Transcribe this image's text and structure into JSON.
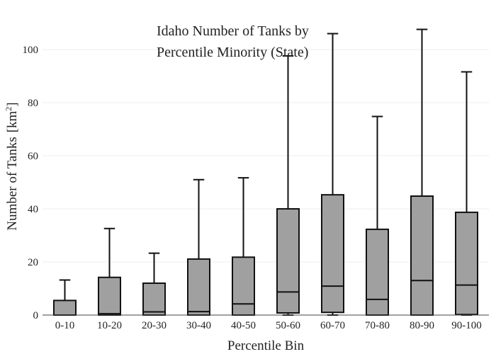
{
  "chart_data": {
    "type": "box",
    "title_lines": [
      "Idaho Number of Tanks by",
      "Percentile Minority (State)"
    ],
    "xlabel": "Percentile Bin",
    "ylabel": "Number of Tanks",
    "ylabel_unit": "[km",
    "ylabel_unit_sup": "2",
    "ylabel_unit_close": "]",
    "categories": [
      "0-10",
      "10-20",
      "20-30",
      "30-40",
      "40-50",
      "50-60",
      "60-70",
      "70-80",
      "80-90",
      "90-100"
    ],
    "boxes": [
      {
        "min": 0,
        "q1": 0,
        "median": 0,
        "q3": 5.5,
        "max": 13.2
      },
      {
        "min": 0,
        "q1": 0,
        "median": 0.5,
        "q3": 14.2,
        "max": 32.6
      },
      {
        "min": 0,
        "q1": 0,
        "median": 1.2,
        "q3": 12.0,
        "max": 23.3
      },
      {
        "min": 0,
        "q1": 0,
        "median": 1.3,
        "q3": 21.1,
        "max": 51.0
      },
      {
        "min": 0,
        "q1": 0,
        "median": 4.2,
        "q3": 21.8,
        "max": 51.7
      },
      {
        "min": 0,
        "q1": 0.8,
        "median": 8.7,
        "q3": 40.0,
        "max": 97.6
      },
      {
        "min": 0,
        "q1": 1.0,
        "median": 10.9,
        "q3": 45.3,
        "max": 106.0
      },
      {
        "min": 0,
        "q1": 0,
        "median": 5.9,
        "q3": 32.3,
        "max": 74.8
      },
      {
        "min": 0,
        "q1": 0,
        "median": 13.0,
        "q3": 44.8,
        "max": 107.6
      },
      {
        "min": 0,
        "q1": 0.2,
        "median": 11.3,
        "q3": 38.7,
        "max": 91.6
      }
    ],
    "yticks": [
      0,
      20,
      40,
      60,
      80,
      100
    ],
    "ylim": [
      0,
      112
    ],
    "grid": true,
    "box_color": "#a0a0a0",
    "line_color": "#111111",
    "grid_color": "#eeeeee"
  }
}
